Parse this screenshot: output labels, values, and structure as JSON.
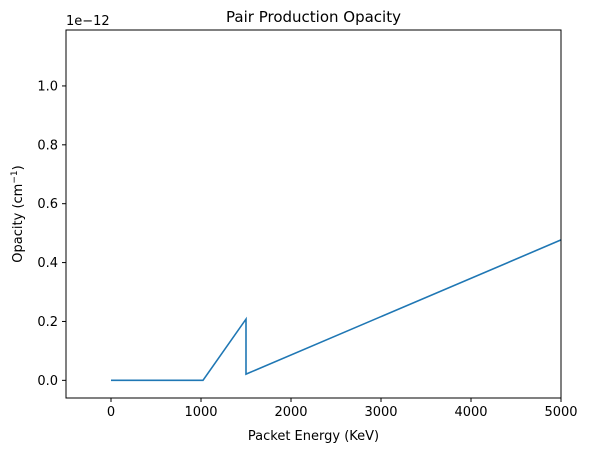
{
  "chart_data": {
    "type": "line",
    "title": "Pair Production Opacity",
    "xlabel": "Packet Energy (KeV)",
    "ylabel": "Opacity (cm$^-1$)",
    "ylabel_main": "Opacity (cm",
    "ylabel_sup": "−1",
    "ylabel_close": ")",
    "y_offset_label": "1e−12",
    "y_scale": 1e-12,
    "xlim": [
      -500,
      5000
    ],
    "ylim": [
      -0.06,
      1.19
    ],
    "xticks": [
      0,
      1000,
      2000,
      3000,
      4000,
      5000
    ],
    "xtick_labels": [
      "0",
      "1000",
      "2000",
      "3000",
      "4000",
      "5000"
    ],
    "yticks": [
      0.0,
      0.2,
      0.4,
      0.6,
      0.8,
      1.0
    ],
    "ytick_labels": [
      "0.0",
      "0.2",
      "0.4",
      "0.6",
      "0.8",
      "1.0"
    ],
    "grid": false,
    "series": [
      {
        "color": "#1f77b4",
        "x": [
          0,
          1022,
          1500,
          1500,
          5000
        ],
        "y": [
          0.0,
          0.0,
          0.208,
          0.021,
          0.477
        ]
      }
    ]
  }
}
